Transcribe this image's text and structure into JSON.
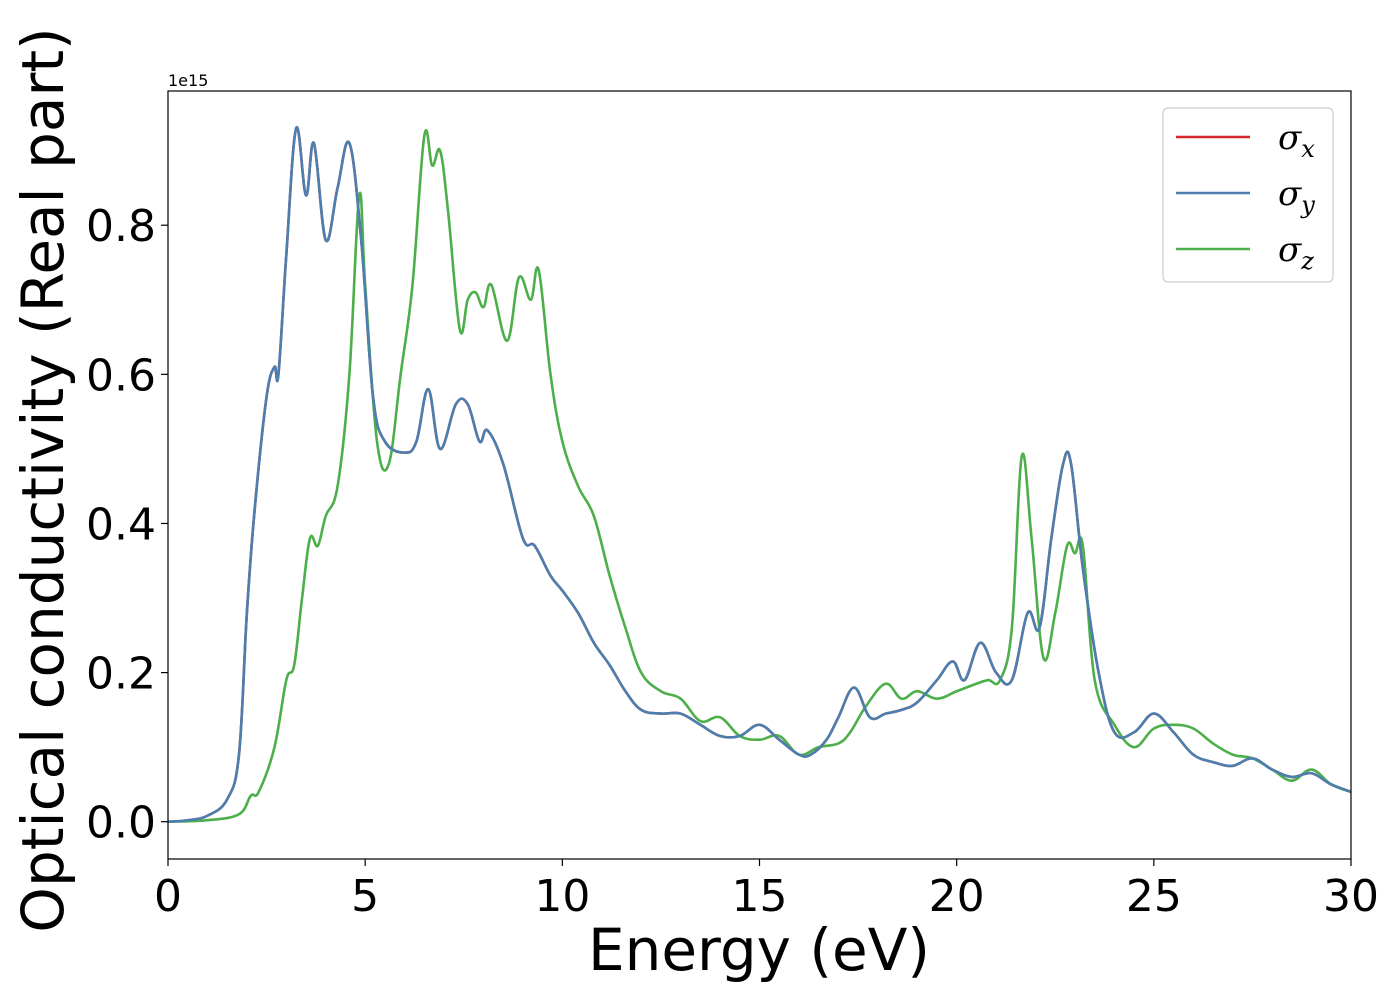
{
  "chart_data": {
    "type": "line",
    "xlabel": "Energy (eV)",
    "ylabel": "Optical conductivity (Real part)",
    "y_offset_label": "1e15",
    "xlim": [
      0,
      30
    ],
    "ylim": [
      -0.05,
      0.98
    ],
    "x_ticks": [
      0,
      5,
      10,
      15,
      20,
      25,
      30
    ],
    "x_tick_labels": [
      "0",
      "5",
      "10",
      "15",
      "20",
      "25",
      "30"
    ],
    "y_ticks": [
      0.0,
      0.2,
      0.4,
      0.6,
      0.8
    ],
    "y_tick_labels": [
      "0.0",
      "0.2",
      "0.4",
      "0.6",
      "0.8"
    ],
    "grid": false,
    "legend_position": "top-right",
    "series": [
      {
        "name": "σx",
        "legend_symbol": "σ",
        "legend_sub": "x",
        "color": "#d62728",
        "x": [
          0,
          0.5,
          1,
          1.5,
          1.8,
          2.0,
          2.2,
          2.5,
          2.7,
          2.8,
          3.0,
          3.25,
          3.5,
          3.7,
          4.0,
          4.3,
          4.6,
          4.9,
          5.2,
          5.5,
          6.0,
          6.3,
          6.6,
          6.9,
          7.3,
          7.6,
          7.9,
          8.1,
          8.5,
          9.0,
          9.3,
          9.7,
          10.0,
          10.4,
          10.8,
          11.2,
          11.6,
          12.0,
          12.5,
          13.0,
          13.5,
          14.0,
          14.5,
          15.0,
          15.5,
          16.0,
          16.3,
          16.7,
          17.0,
          17.4,
          17.8,
          18.2,
          18.6,
          19.0,
          19.5,
          19.9,
          20.2,
          20.6,
          21.0,
          21.4,
          21.8,
          22.1,
          22.4,
          22.7,
          22.9,
          23.2,
          23.6,
          24.0,
          24.5,
          25.0,
          25.5,
          26.0,
          26.5,
          27.0,
          27.5,
          28.0,
          28.5,
          29.0,
          29.5,
          30.0
        ],
        "values": [
          0.0,
          0.002,
          0.008,
          0.03,
          0.09,
          0.28,
          0.42,
          0.57,
          0.61,
          0.6,
          0.76,
          0.93,
          0.84,
          0.91,
          0.78,
          0.85,
          0.91,
          0.78,
          0.57,
          0.51,
          0.495,
          0.51,
          0.58,
          0.5,
          0.56,
          0.56,
          0.51,
          0.525,
          0.48,
          0.38,
          0.37,
          0.33,
          0.31,
          0.28,
          0.24,
          0.21,
          0.175,
          0.15,
          0.145,
          0.145,
          0.13,
          0.115,
          0.115,
          0.13,
          0.11,
          0.09,
          0.09,
          0.11,
          0.14,
          0.18,
          0.14,
          0.145,
          0.15,
          0.16,
          0.19,
          0.215,
          0.19,
          0.24,
          0.2,
          0.19,
          0.28,
          0.26,
          0.38,
          0.48,
          0.48,
          0.34,
          0.2,
          0.12,
          0.12,
          0.145,
          0.12,
          0.09,
          0.08,
          0.075,
          0.085,
          0.07,
          0.06,
          0.065,
          0.05,
          0.04
        ]
      },
      {
        "name": "σy",
        "legend_symbol": "σ",
        "legend_sub": "y",
        "color": "#4a7fb0",
        "x": [
          0,
          0.5,
          1,
          1.5,
          1.8,
          2.0,
          2.2,
          2.5,
          2.7,
          2.8,
          3.0,
          3.25,
          3.5,
          3.7,
          4.0,
          4.3,
          4.6,
          4.9,
          5.2,
          5.5,
          6.0,
          6.3,
          6.6,
          6.9,
          7.3,
          7.6,
          7.9,
          8.1,
          8.5,
          9.0,
          9.3,
          9.7,
          10.0,
          10.4,
          10.8,
          11.2,
          11.6,
          12.0,
          12.5,
          13.0,
          13.5,
          14.0,
          14.5,
          15.0,
          15.5,
          16.0,
          16.3,
          16.7,
          17.0,
          17.4,
          17.8,
          18.2,
          18.6,
          19.0,
          19.5,
          19.9,
          20.2,
          20.6,
          21.0,
          21.4,
          21.8,
          22.1,
          22.4,
          22.7,
          22.9,
          23.2,
          23.6,
          24.0,
          24.5,
          25.0,
          25.5,
          26.0,
          26.5,
          27.0,
          27.5,
          28.0,
          28.5,
          29.0,
          29.5,
          30.0
        ],
        "values": [
          0.0,
          0.002,
          0.008,
          0.03,
          0.09,
          0.28,
          0.42,
          0.57,
          0.61,
          0.6,
          0.76,
          0.93,
          0.84,
          0.91,
          0.78,
          0.85,
          0.91,
          0.78,
          0.57,
          0.51,
          0.495,
          0.51,
          0.58,
          0.5,
          0.56,
          0.56,
          0.51,
          0.525,
          0.48,
          0.38,
          0.37,
          0.33,
          0.31,
          0.28,
          0.24,
          0.21,
          0.175,
          0.15,
          0.145,
          0.145,
          0.13,
          0.115,
          0.115,
          0.13,
          0.11,
          0.09,
          0.09,
          0.11,
          0.14,
          0.18,
          0.14,
          0.145,
          0.15,
          0.16,
          0.19,
          0.215,
          0.19,
          0.24,
          0.2,
          0.19,
          0.28,
          0.26,
          0.38,
          0.48,
          0.48,
          0.34,
          0.2,
          0.12,
          0.12,
          0.145,
          0.12,
          0.09,
          0.08,
          0.075,
          0.085,
          0.07,
          0.06,
          0.065,
          0.05,
          0.04
        ]
      },
      {
        "name": "σz",
        "legend_symbol": "σ",
        "legend_sub": "z",
        "color": "#4daf4a",
        "x": [
          0,
          1,
          1.8,
          2.1,
          2.3,
          2.7,
          3.0,
          3.2,
          3.4,
          3.6,
          3.8,
          4.0,
          4.3,
          4.6,
          4.85,
          5.0,
          5.3,
          5.6,
          5.9,
          6.2,
          6.5,
          6.7,
          6.9,
          7.1,
          7.4,
          7.6,
          7.8,
          8.0,
          8.2,
          8.6,
          8.9,
          9.2,
          9.4,
          9.7,
          10.0,
          10.4,
          10.8,
          11.2,
          11.6,
          12.0,
          12.5,
          13.0,
          13.5,
          14.0,
          14.5,
          15.0,
          15.5,
          16.0,
          16.5,
          17.0,
          17.3,
          17.7,
          18.2,
          18.6,
          19.0,
          19.5,
          20.0,
          20.5,
          20.8,
          21.1,
          21.4,
          21.65,
          21.9,
          22.2,
          22.5,
          22.8,
          23.0,
          23.2,
          23.5,
          24.0,
          24.5,
          25.0,
          25.5,
          26.0,
          26.5,
          27.0,
          27.5,
          28.0,
          28.5,
          29.0,
          29.5,
          30.0
        ],
        "values": [
          0.0,
          0.002,
          0.01,
          0.035,
          0.04,
          0.1,
          0.19,
          0.21,
          0.3,
          0.38,
          0.37,
          0.41,
          0.45,
          0.6,
          0.84,
          0.72,
          0.51,
          0.48,
          0.6,
          0.72,
          0.92,
          0.88,
          0.9,
          0.82,
          0.66,
          0.7,
          0.71,
          0.69,
          0.72,
          0.645,
          0.73,
          0.7,
          0.74,
          0.6,
          0.51,
          0.45,
          0.41,
          0.33,
          0.26,
          0.2,
          0.175,
          0.165,
          0.135,
          0.14,
          0.115,
          0.11,
          0.115,
          0.09,
          0.1,
          0.105,
          0.12,
          0.155,
          0.185,
          0.165,
          0.175,
          0.165,
          0.175,
          0.185,
          0.19,
          0.19,
          0.26,
          0.49,
          0.38,
          0.22,
          0.28,
          0.37,
          0.36,
          0.37,
          0.19,
          0.13,
          0.1,
          0.125,
          0.13,
          0.125,
          0.105,
          0.09,
          0.085,
          0.07,
          0.055,
          0.07,
          0.05,
          0.04
        ]
      }
    ]
  }
}
